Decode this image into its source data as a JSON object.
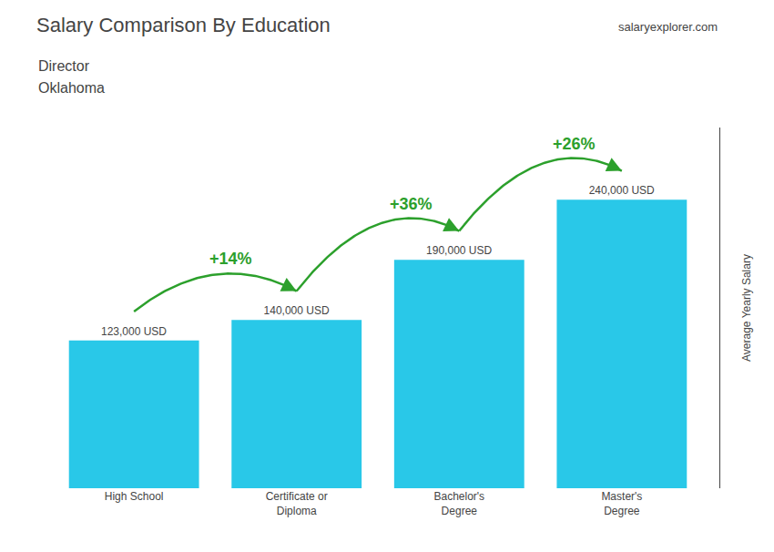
{
  "chart_data": {
    "type": "bar",
    "title": "Salary Comparison By Education",
    "subtitle": [
      "Director",
      "Oklahoma"
    ],
    "watermark": "salaryexplorer.com",
    "ylabel": "Average Yearly Salary",
    "categories": [
      "High School",
      "Certificate or\nDiploma",
      "Bachelor's\nDegree",
      "Master's\nDegree"
    ],
    "values": [
      123000,
      140000,
      190000,
      240000
    ],
    "value_labels": [
      "123,000 USD",
      "140,000 USD",
      "190,000 USD",
      "240,000 USD"
    ],
    "data_labels": true,
    "color": "#29c8e8",
    "annotations": [
      {
        "text": "+14%",
        "color": "#2ca02c"
      },
      {
        "text": "+36%",
        "color": "#2ca02c"
      },
      {
        "text": "+26%",
        "color": "#2ca02c"
      }
    ],
    "ylim": [
      0,
      300000
    ],
    "yticks": [],
    "tick_labels": "x",
    "grid": false
  }
}
